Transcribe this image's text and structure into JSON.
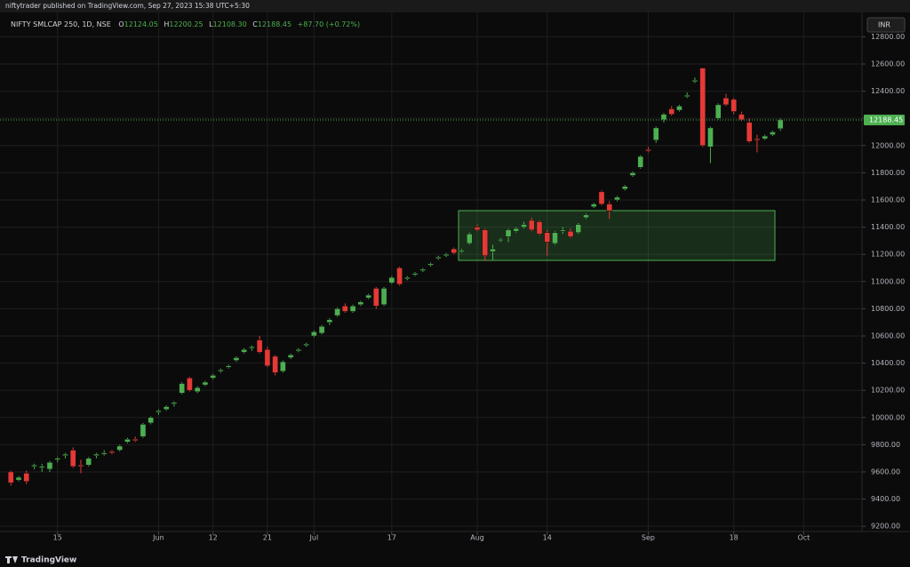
{
  "header": {
    "publisher": "niftytrader published on TradingView.com, Sep 27, 2023 15:38 UTC+5:30"
  },
  "chart_data": {
    "type": "candlestick",
    "title": "NIFTY SMLCAP 250, 1D, NSE",
    "ohlc_labels": [
      "O",
      "H",
      "L",
      "C"
    ],
    "ohlc_value_labels": [
      "12124.05",
      "12200.25",
      "12108.30",
      "12188.45"
    ],
    "change": "+87.70 (+0.72%)",
    "currency": "INR",
    "up_color": "#4caf50",
    "down_color": "#e53935",
    "grid": true,
    "open": [
      9600,
      9540,
      9590,
      9640,
      9630,
      9620,
      9690,
      9720,
      9760,
      9650,
      9650,
      9720,
      9730,
      9750,
      9760,
      9820,
      9840,
      9860,
      9960,
      10040,
      10060,
      10100,
      10180,
      10290,
      10190,
      10240,
      10290,
      10340,
      10370,
      10420,
      10480,
      10510,
      10570,
      10500,
      10450,
      10340,
      10440,
      10490,
      10530,
      10600,
      10620,
      10700,
      10750,
      10820,
      10780,
      10830,
      10880,
      10950,
      10830,
      10990,
      11100,
      11020,
      11050,
      11080,
      11120,
      11170,
      11190,
      11240,
      11220,
      11280,
      11400,
      11380,
      11220,
      11300,
      11330,
      11370,
      11400,
      11450,
      11440,
      11360,
      11280,
      11370,
      11370,
      11360,
      11470,
      11550,
      11660,
      11570,
      11600,
      11680,
      11780,
      11840,
      11970,
      12040,
      12190,
      12270,
      12260,
      12360,
      12470,
      12570,
      11990,
      12200,
      12350,
      12340,
      12230,
      12170,
      12050,
      12050,
      12080,
      12124.05
    ],
    "high": [
      9610,
      9570,
      9610,
      9660,
      9660,
      9680,
      9710,
      9740,
      9780,
      9690,
      9710,
      9740,
      9760,
      9760,
      9800,
      9850,
      9860,
      9960,
      10010,
      10060,
      10090,
      10120,
      10260,
      10300,
      10230,
      10270,
      10320,
      10360,
      10390,
      10450,
      10510,
      10530,
      10600,
      10520,
      10460,
      10420,
      10470,
      10510,
      10550,
      10640,
      10680,
      10730,
      10810,
      10840,
      10830,
      10860,
      10910,
      10960,
      10960,
      11040,
      11110,
      11040,
      11070,
      11100,
      11140,
      11190,
      11210,
      11250,
      11240,
      11360,
      11420,
      11390,
      11270,
      11320,
      11390,
      11400,
      11440,
      11470,
      11450,
      11380,
      11370,
      11400,
      11390,
      11430,
      11500,
      11580,
      11670,
      11590,
      11630,
      11710,
      11810,
      11930,
      11990,
      12140,
      12240,
      12290,
      12300,
      12390,
      12500,
      12570,
      12140,
      12310,
      12380,
      12350,
      12250,
      12200,
      12080,
      12080,
      12110,
      12200.25
    ],
    "low": [
      9500,
      9530,
      9510,
      9620,
      9600,
      9600,
      9670,
      9700,
      9630,
      9590,
      9640,
      9700,
      9720,
      9730,
      9750,
      9810,
      9820,
      9850,
      9950,
      10020,
      10050,
      10080,
      10170,
      10190,
      10180,
      10230,
      10280,
      10330,
      10360,
      10410,
      10470,
      10490,
      10470,
      10370,
      10310,
      10330,
      10430,
      10480,
      10520,
      10590,
      10610,
      10680,
      10740,
      10770,
      10770,
      10820,
      10870,
      10800,
      10820,
      10980,
      10970,
      11010,
      11040,
      11070,
      11110,
      11160,
      11180,
      11200,
      11210,
      11270,
      11370,
      11150,
      11160,
      11290,
      11290,
      11360,
      11390,
      11370,
      11340,
      11190,
      11270,
      11350,
      11320,
      11350,
      11460,
      11540,
      11560,
      11460,
      11590,
      11670,
      11770,
      11830,
      11950,
      12020,
      12170,
      12220,
      12250,
      12350,
      12460,
      11990,
      11870,
      12190,
      12290,
      12230,
      12180,
      12020,
      11950,
      12040,
      12070,
      12108.3
    ],
    "close": [
      9520,
      9560,
      9530,
      9650,
      9640,
      9670,
      9700,
      9730,
      9640,
      9640,
      9700,
      9730,
      9740,
      9740,
      9790,
      9840,
      9830,
      9950,
      10000,
      10050,
      10080,
      10110,
      10250,
      10200,
      10220,
      10260,
      10310,
      10350,
      10380,
      10440,
      10500,
      10520,
      10480,
      10380,
      10330,
      10410,
      10460,
      10500,
      10540,
      10630,
      10670,
      10720,
      10800,
      10780,
      10820,
      10850,
      10900,
      10820,
      10950,
      11030,
      10980,
      11030,
      11060,
      11090,
      11130,
      11180,
      11200,
      11210,
      11230,
      11350,
      11380,
      11190,
      11240,
      11310,
      11380,
      11390,
      11420,
      11380,
      11350,
      11290,
      11360,
      11380,
      11330,
      11420,
      11490,
      11570,
      11570,
      11520,
      11620,
      11700,
      11800,
      11920,
      11960,
      12130,
      12230,
      12230,
      12290,
      12370,
      12480,
      12000,
      12130,
      12300,
      12300,
      12250,
      12190,
      12030,
      12040,
      12070,
      12100,
      12188.45
    ],
    "xlim": [
      -1.4,
      109.5
    ],
    "xticks": [
      {
        "value": 6,
        "label": "15"
      },
      {
        "value": 19,
        "label": "Jun"
      },
      {
        "value": 26,
        "label": "12"
      },
      {
        "value": 33,
        "label": "21"
      },
      {
        "value": 39,
        "label": "Jul"
      },
      {
        "value": 49,
        "label": "17"
      },
      {
        "value": 60,
        "label": "Aug"
      },
      {
        "value": 69,
        "label": "14"
      },
      {
        "value": 82,
        "label": "Sep"
      },
      {
        "value": 93,
        "label": "18"
      },
      {
        "value": 102,
        "label": "Oct"
      }
    ],
    "ylim": [
      9162,
      12979
    ],
    "yticks": [
      {
        "value": 9200,
        "label": "9200.00"
      },
      {
        "value": 9400,
        "label": "9400.00"
      },
      {
        "value": 9600,
        "label": "9600.00"
      },
      {
        "value": 9800,
        "label": "9800.00"
      },
      {
        "value": 10000,
        "label": "10000.00"
      },
      {
        "value": 10200,
        "label": "10200.00"
      },
      {
        "value": 10400,
        "label": "10400.00"
      },
      {
        "value": 10600,
        "label": "10600.00"
      },
      {
        "value": 10800,
        "label": "10800.00"
      },
      {
        "value": 11000,
        "label": "11000.00"
      },
      {
        "value": 11200,
        "label": "11200.00"
      },
      {
        "value": 11400,
        "label": "11400.00"
      },
      {
        "value": 11600,
        "label": "11600.00"
      },
      {
        "value": 11800,
        "label": "11800.00"
      },
      {
        "value": 12000,
        "label": "12000.00"
      },
      {
        "value": 12200,
        "label": "12200.00"
      },
      {
        "value": 12400,
        "label": "12400.00"
      },
      {
        "value": 12600,
        "label": "12600.00"
      },
      {
        "value": 12800,
        "label": "12800.00"
      }
    ]
  },
  "footer": {
    "brand": "TradingView"
  }
}
